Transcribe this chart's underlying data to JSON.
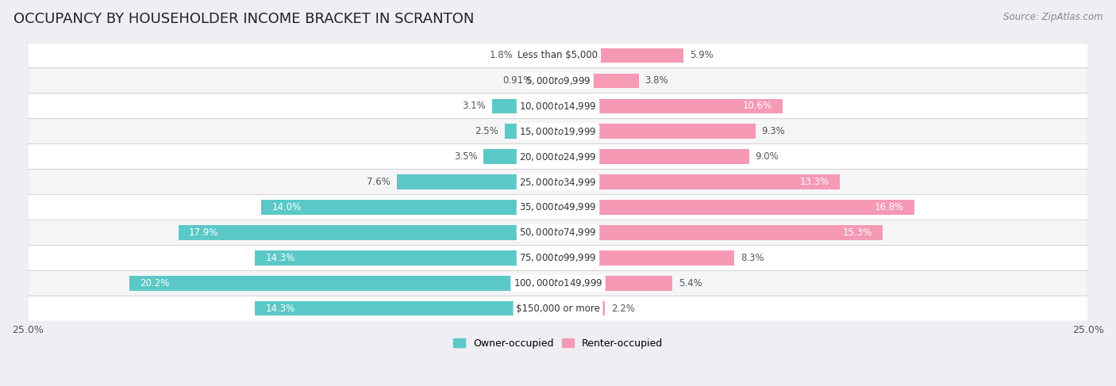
{
  "title": "OCCUPANCY BY HOUSEHOLDER INCOME BRACKET IN SCRANTON",
  "source": "Source: ZipAtlas.com",
  "categories": [
    "Less than $5,000",
    "$5,000 to $9,999",
    "$10,000 to $14,999",
    "$15,000 to $19,999",
    "$20,000 to $24,999",
    "$25,000 to $34,999",
    "$35,000 to $49,999",
    "$50,000 to $74,999",
    "$75,000 to $99,999",
    "$100,000 to $149,999",
    "$150,000 or more"
  ],
  "owner_values": [
    1.8,
    0.91,
    3.1,
    2.5,
    3.5,
    7.6,
    14.0,
    17.9,
    14.3,
    20.2,
    14.3
  ],
  "renter_values": [
    5.9,
    3.8,
    10.6,
    9.3,
    9.0,
    13.3,
    16.8,
    15.3,
    8.3,
    5.4,
    2.2
  ],
  "owner_color": "#5bc8c8",
  "renter_color": "#f599b4",
  "owner_label": "Owner-occupied",
  "renter_label": "Renter-occupied",
  "xlim": 25.0,
  "bar_height": 0.58,
  "background_color": "#eeeef3",
  "row_bg_odd": "#f5f5f8",
  "row_bg_even": "#ffffff",
  "title_fontsize": 13,
  "label_fontsize": 8.5,
  "cat_fontsize": 8.5,
  "tick_fontsize": 9,
  "source_fontsize": 8.5
}
